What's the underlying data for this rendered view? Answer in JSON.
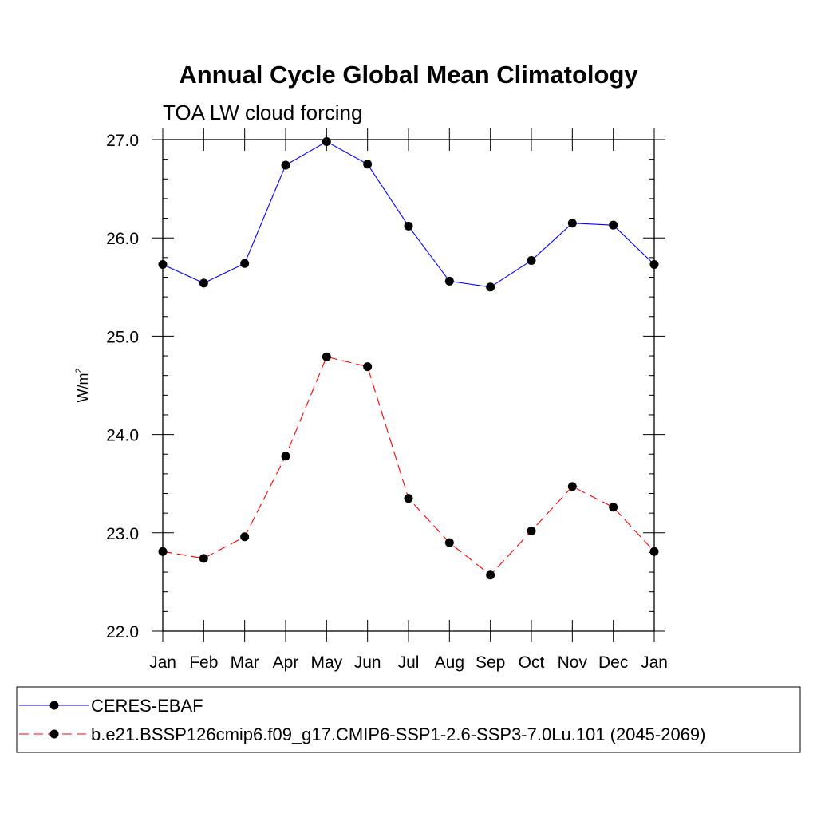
{
  "chart_data": {
    "type": "line",
    "title": "Annual Cycle Global Mean Climatology",
    "subtitle": "TOA LW cloud forcing",
    "xlabel": "",
    "ylabel_base": "W/m",
    "ylabel_sup": "2",
    "categories": [
      "Jan",
      "Feb",
      "Mar",
      "Apr",
      "May",
      "Jun",
      "Jul",
      "Aug",
      "Sep",
      "Oct",
      "Nov",
      "Dec",
      "Jan"
    ],
    "ylim": [
      22.0,
      27.0
    ],
    "yticks": [
      "22.0",
      "23.0",
      "24.0",
      "25.0",
      "26.0",
      "27.0"
    ],
    "legend_position": "bottom",
    "series": [
      {
        "name": "CERES-EBAF",
        "color": "#0000ff",
        "dash": "solid",
        "values": [
          25.73,
          25.54,
          25.74,
          26.74,
          26.98,
          26.75,
          26.12,
          25.56,
          25.5,
          25.77,
          26.15,
          26.13,
          25.73
        ]
      },
      {
        "name": "b.e21.BSSP126cmip6.f09_g17.CMIP6-SSP1-2.6-SSP3-7.0Lu.101 (2045-2069)",
        "color": "#ff0000",
        "dash": "dashed",
        "values": [
          22.81,
          22.74,
          22.96,
          23.78,
          24.79,
          24.69,
          23.35,
          22.9,
          22.57,
          23.02,
          23.47,
          23.26,
          22.81
        ]
      }
    ]
  }
}
